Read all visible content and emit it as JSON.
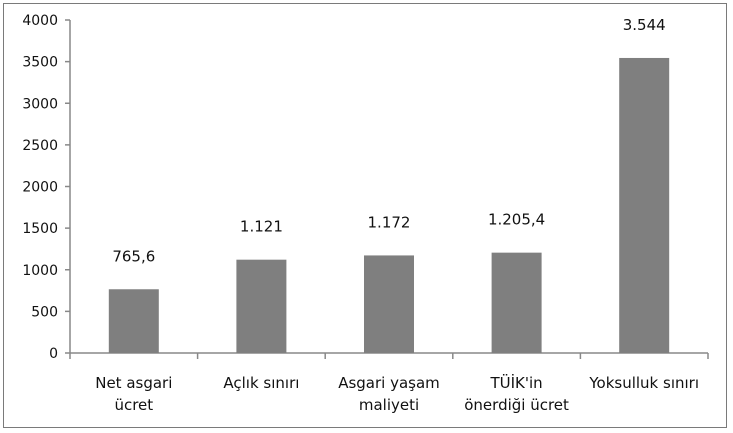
{
  "chart_data": {
    "type": "bar",
    "title": "",
    "xlabel": "",
    "ylabel": "",
    "categories": [
      [
        "Net asgari",
        "ücret"
      ],
      [
        "Açlık sınırı"
      ],
      [
        "Asgari yaşam",
        "maliyeti"
      ],
      [
        "TÜİK'in",
        "önerdiği ücret"
      ],
      [
        "Yoksulluk sınırı"
      ]
    ],
    "values": [
      765.6,
      1121,
      1172,
      1205.4,
      3544
    ],
    "data_labels": [
      "765,6",
      "1.121",
      "1.172",
      "1.205,4",
      "3.544"
    ],
    "ylim": [
      0,
      4000
    ],
    "yticks": [
      0,
      500,
      1000,
      1500,
      2000,
      2500,
      3000,
      3500,
      4000
    ],
    "grid": false,
    "legend": "none",
    "bar_color": "#7f7f7f"
  }
}
